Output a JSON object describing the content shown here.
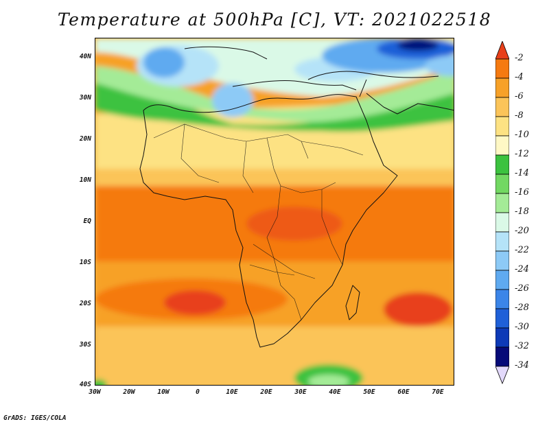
{
  "title": "Temperature at 500hPa [C], VT: 2021022518",
  "credit": "GrADS: IGES/COLA",
  "axes": {
    "y_ticks": [
      "40N",
      "30N",
      "20N",
      "10N",
      "EQ",
      "10S",
      "20S",
      "30S",
      "40S"
    ],
    "x_ticks": [
      "30W",
      "20W",
      "10W",
      "0",
      "10E",
      "20E",
      "30E",
      "40E",
      "50E",
      "60E",
      "70E"
    ]
  },
  "legend": {
    "labels": [
      "-2",
      "-4",
      "-6",
      "-8",
      "-10",
      "-12",
      "-14",
      "-16",
      "-18",
      "-20",
      "-22",
      "-24",
      "-26",
      "-28",
      "-30",
      "-32",
      "-34"
    ],
    "colors": [
      "#e8401a",
      "#f57a10",
      "#f7a128",
      "#fbc459",
      "#fde283",
      "#fff8c5",
      "#3cc23f",
      "#72d862",
      "#a4eb97",
      "#daf9e7",
      "#b5e3f8",
      "#8dcaf6",
      "#5faaf0",
      "#3b85e8",
      "#1f60d8",
      "#0d3ab7",
      "#060a78",
      "#e3d9fb"
    ]
  }
}
